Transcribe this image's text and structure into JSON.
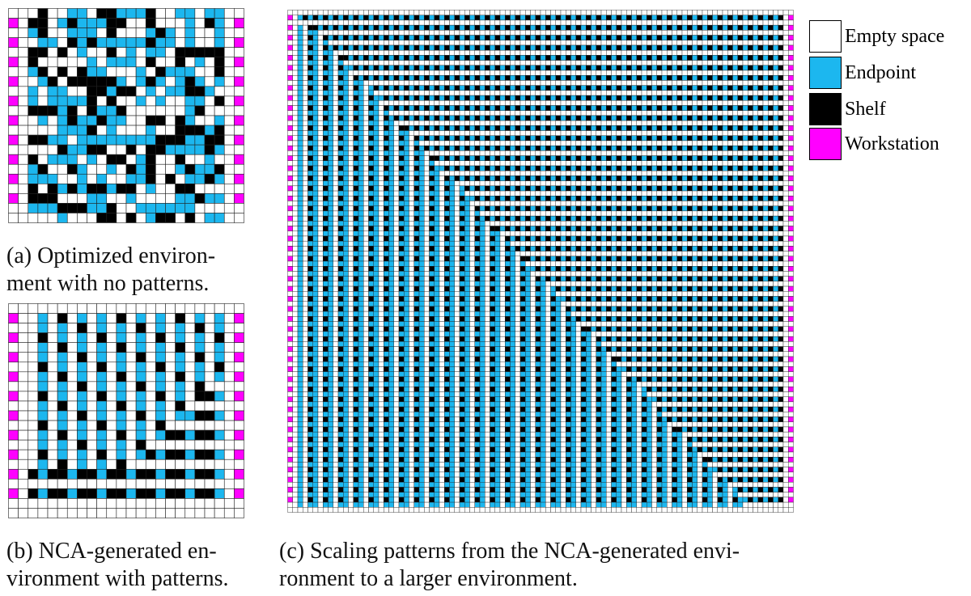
{
  "captions": {
    "a": [
      "(a) Optimized environ-",
      "ment with no patterns."
    ],
    "b": [
      "(b) NCA-generated en-",
      "vironment with patterns."
    ],
    "c": [
      "(c) Scaling patterns from the NCA-generated envi-",
      "ronment to a larger environment."
    ]
  },
  "legend": [
    {
      "label": "Empty space",
      "color": "#ffffff"
    },
    {
      "label": "Endpoint",
      "color": "#1cb7ef"
    },
    {
      "label": "Shelf",
      "color": "#000000"
    },
    {
      "label": "Workstation",
      "color": "#ff00ff"
    }
  ]
}
